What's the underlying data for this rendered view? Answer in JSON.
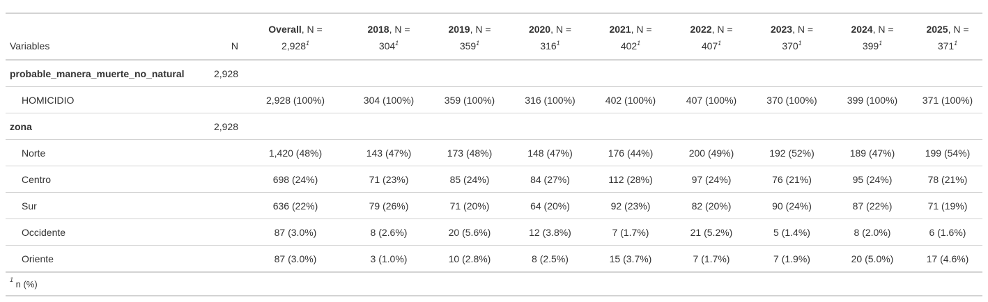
{
  "header": {
    "variables": "Variables",
    "n": "N",
    "groups": [
      {
        "name": "Overall",
        "suffix": ", N =",
        "n": "2,928",
        "mark": "1"
      },
      {
        "name": "2018",
        "suffix": ", N =",
        "n": "304",
        "mark": "1"
      },
      {
        "name": "2019",
        "suffix": ", N =",
        "n": "359",
        "mark": "1"
      },
      {
        "name": "2020",
        "suffix": ", N =",
        "n": "316",
        "mark": "1"
      },
      {
        "name": "2021",
        "suffix": ", N =",
        "n": "402",
        "mark": "1"
      },
      {
        "name": "2022",
        "suffix": ", N =",
        "n": "407",
        "mark": "1"
      },
      {
        "name": "2023",
        "suffix": ", N =",
        "n": "370",
        "mark": "1"
      },
      {
        "name": "2024",
        "suffix": ", N =",
        "n": "399",
        "mark": "1"
      },
      {
        "name": "2025",
        "suffix": ", N =",
        "n": "371",
        "mark": "1"
      }
    ]
  },
  "rows": [
    {
      "type": "label",
      "variable": "probable_manera_muerte_no_natural",
      "n": "2,928",
      "cells": [
        "",
        "",
        "",
        "",
        "",
        "",
        "",
        "",
        ""
      ]
    },
    {
      "type": "level",
      "variable": "HOMICIDIO",
      "n": "",
      "cells": [
        "2,928 (100%)",
        "304 (100%)",
        "359 (100%)",
        "316 (100%)",
        "402 (100%)",
        "407 (100%)",
        "370 (100%)",
        "399 (100%)",
        "371 (100%)"
      ]
    },
    {
      "type": "label",
      "variable": "zona",
      "n": "2,928",
      "cells": [
        "",
        "",
        "",
        "",
        "",
        "",
        "",
        "",
        ""
      ]
    },
    {
      "type": "level",
      "variable": "Norte",
      "n": "",
      "cells": [
        "1,420 (48%)",
        "143 (47%)",
        "173 (48%)",
        "148 (47%)",
        "176 (44%)",
        "200 (49%)",
        "192 (52%)",
        "189 (47%)",
        "199 (54%)"
      ]
    },
    {
      "type": "level",
      "variable": "Centro",
      "n": "",
      "cells": [
        "698 (24%)",
        "71 (23%)",
        "85 (24%)",
        "84 (27%)",
        "112 (28%)",
        "97 (24%)",
        "76 (21%)",
        "95 (24%)",
        "78 (21%)"
      ]
    },
    {
      "type": "level",
      "variable": "Sur",
      "n": "",
      "cells": [
        "636 (22%)",
        "79 (26%)",
        "71 (20%)",
        "64 (20%)",
        "92 (23%)",
        "82 (20%)",
        "90 (24%)",
        "87 (22%)",
        "71 (19%)"
      ]
    },
    {
      "type": "level",
      "variable": "Occidente",
      "n": "",
      "cells": [
        "87 (3.0%)",
        "8 (2.6%)",
        "20 (5.6%)",
        "12 (3.8%)",
        "7 (1.7%)",
        "21 (5.2%)",
        "5 (1.4%)",
        "8 (2.0%)",
        "6 (1.6%)"
      ]
    },
    {
      "type": "level",
      "variable": "Oriente",
      "n": "",
      "cells": [
        "87 (3.0%)",
        "3 (1.0%)",
        "10 (2.8%)",
        "8 (2.5%)",
        "15 (3.7%)",
        "7 (1.7%)",
        "7 (1.9%)",
        "20 (5.0%)",
        "17 (4.6%)"
      ]
    }
  ],
  "footnote": {
    "mark": "1",
    "text": "n (%)"
  }
}
